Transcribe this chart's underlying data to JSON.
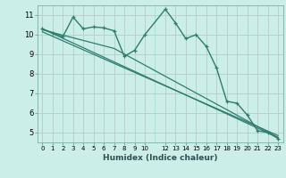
{
  "xlabel": "Humidex (Indice chaleur)",
  "bg_color": "#cceee8",
  "grid_color": "#aad4cc",
  "line_color": "#2e7d6e",
  "xlim": [
    -0.5,
    23.5
  ],
  "ylim": [
    4.5,
    11.5
  ],
  "xticks": [
    0,
    1,
    2,
    3,
    4,
    5,
    6,
    7,
    8,
    9,
    10,
    12,
    13,
    14,
    15,
    16,
    17,
    18,
    19,
    20,
    21,
    22,
    23
  ],
  "yticks": [
    5,
    6,
    7,
    8,
    9,
    10,
    11
  ],
  "line1_x": [
    0,
    1,
    2,
    3,
    4,
    5,
    6,
    7,
    8,
    9,
    10,
    12,
    13,
    14,
    15,
    16,
    17,
    18,
    19,
    20,
    21,
    22,
    23
  ],
  "line1_y": [
    10.3,
    10.1,
    9.9,
    10.9,
    10.3,
    10.4,
    10.35,
    10.2,
    8.9,
    9.2,
    10.0,
    11.3,
    10.6,
    9.8,
    10.0,
    9.4,
    8.3,
    6.6,
    6.5,
    5.9,
    5.1,
    5.0,
    4.7
  ],
  "line2_x": [
    0,
    7,
    23
  ],
  "line2_y": [
    10.25,
    9.3,
    4.75
  ],
  "line3_x": [
    0,
    23
  ],
  "line3_y": [
    10.3,
    4.75
  ],
  "line4_x": [
    0,
    23
  ],
  "line4_y": [
    10.15,
    4.85
  ]
}
